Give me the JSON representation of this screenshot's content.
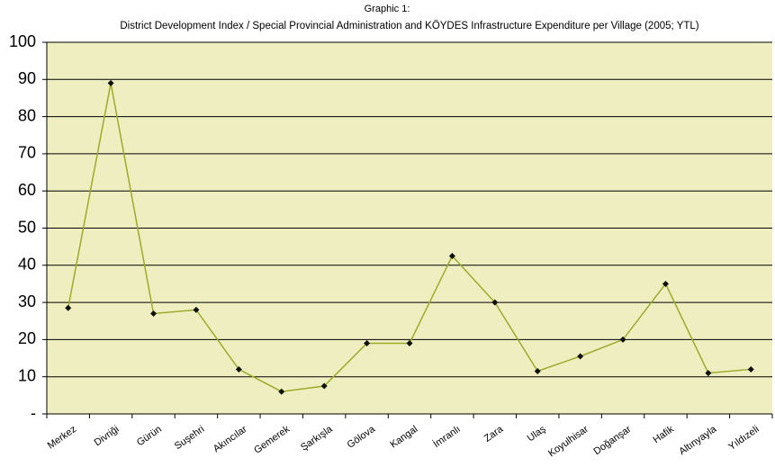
{
  "chart_data": {
    "type": "line",
    "title": "Graphic 1:",
    "subtitle": "District Development Index / Special Provincial Administration and KÖYDES Infrastructure Expenditure per Village (2005; YTL)",
    "categories": [
      "Merkez",
      "Divriği",
      "Gürün",
      "Suşehri",
      "Akıncılar",
      "Gemerek",
      "Şarkışla",
      "Gölova",
      "Kangal",
      "İmranlı",
      "Zara",
      "Ulaş",
      "Koyulhisar",
      "Doğanşar",
      "Hafik",
      "Altınyayla",
      "Yıldızeli"
    ],
    "series": [
      {
        "color": "#9aab2a",
        "values": [
          28.5,
          89,
          27,
          28,
          12,
          6,
          7.5,
          19,
          19,
          42.5,
          30,
          11.5,
          15.5,
          20,
          35,
          11,
          12
        ]
      }
    ],
    "ylim": [
      0,
      100
    ],
    "yticks": [
      {
        "value": 0,
        "label": "-"
      },
      10,
      20,
      30,
      40,
      50,
      60,
      70,
      80,
      90,
      100
    ],
    "grid": true
  }
}
